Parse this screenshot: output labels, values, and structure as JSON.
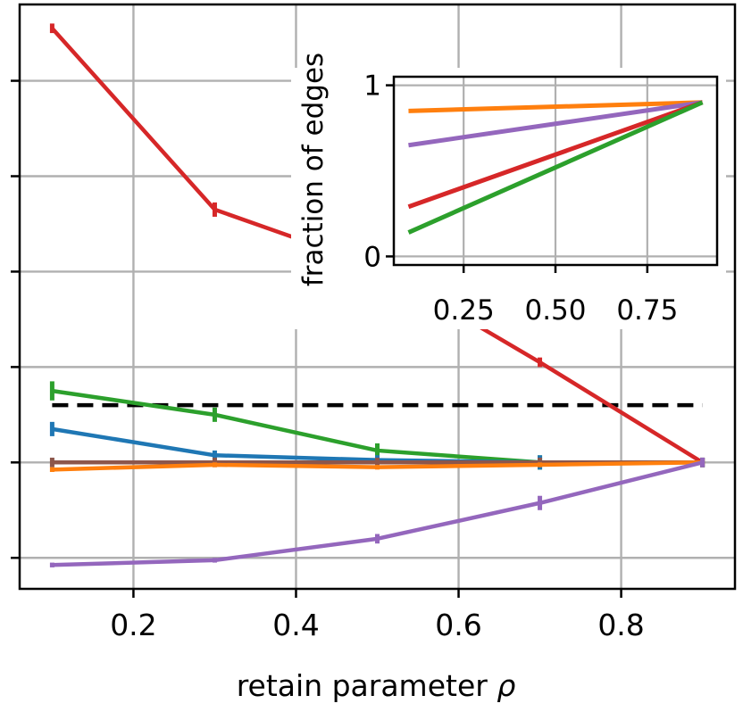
{
  "chart_data": [
    {
      "type": "line",
      "xlabel": "retain parameter ",
      "xlabel_symbol": "ρ",
      "ylabel": "",
      "x": [
        0.1,
        0.3,
        0.5,
        0.7,
        0.9
      ],
      "xlim": [
        0.06,
        0.94
      ],
      "ylim": [
        -0.53,
        1.92
      ],
      "xticks": [
        0.2,
        0.4,
        0.6,
        0.8
      ],
      "xtick_labels": [
        "0.2",
        "0.4",
        "0.6",
        "0.8"
      ],
      "yticks": [
        -0.4,
        0.0,
        0.4,
        0.8,
        1.2,
        1.6
      ],
      "ytick_labels": [
        "",
        "",
        "",
        "",
        "",
        ""
      ],
      "grid": true,
      "series": [
        {
          "color": "#d62728",
          "values": [
            1.82,
            1.06,
            0.82,
            0.42,
            0.0
          ],
          "errors": [
            0.02,
            0.03,
            0.03,
            0.02,
            0.02
          ]
        },
        {
          "color": "#2ca02c",
          "values": [
            0.3,
            0.2,
            0.05,
            0.0,
            0.0
          ],
          "errors": [
            0.04,
            0.03,
            0.03,
            0.03,
            0.02
          ]
        },
        {
          "color": "#1f77b4",
          "values": [
            0.14,
            0.03,
            0.01,
            0.0,
            0.0
          ],
          "errors": [
            0.03,
            0.02,
            0.02,
            0.03,
            0.02
          ]
        },
        {
          "color": "#8c564b",
          "values": [
            0.0,
            0.0,
            0.0,
            0.0,
            0.0
          ],
          "errors": [
            0.02,
            0.02,
            0.02,
            0.02,
            0.02
          ]
        },
        {
          "color": "#ff7f0e",
          "values": [
            -0.03,
            -0.01,
            -0.02,
            -0.01,
            0.0
          ],
          "errors": [
            0.01,
            0.01,
            0.01,
            0.01,
            0.01
          ]
        },
        {
          "color": "#9467bd",
          "values": [
            -0.43,
            -0.41,
            -0.32,
            -0.17,
            0.0
          ],
          "errors": [
            0.01,
            0.01,
            0.02,
            0.03,
            0.02
          ]
        }
      ],
      "reference_line": {
        "y": 0.24,
        "style": "dashed",
        "color": "#000000"
      }
    },
    {
      "type": "line",
      "xlabel": "",
      "ylabel": "fraction of edges",
      "xlim": [
        0.06,
        0.94
      ],
      "ylim": [
        -0.05,
        1.05
      ],
      "xticks": [
        0.25,
        0.5,
        0.75
      ],
      "xtick_labels": [
        "0.25",
        "0.50",
        "0.75"
      ],
      "yticks": [
        0,
        1
      ],
      "ytick_labels": [
        "0",
        "1"
      ],
      "grid": true,
      "series": [
        {
          "color": "#ff7f0e",
          "x": [
            0.1,
            0.9
          ],
          "values": [
            0.85,
            0.9
          ]
        },
        {
          "color": "#9467bd",
          "x": [
            0.1,
            0.9
          ],
          "values": [
            0.65,
            0.9
          ]
        },
        {
          "color": "#d62728",
          "x": [
            0.1,
            0.9
          ],
          "values": [
            0.29,
            0.9
          ]
        },
        {
          "color": "#2ca02c",
          "x": [
            0.1,
            0.9
          ],
          "values": [
            0.14,
            0.9
          ]
        }
      ]
    }
  ]
}
